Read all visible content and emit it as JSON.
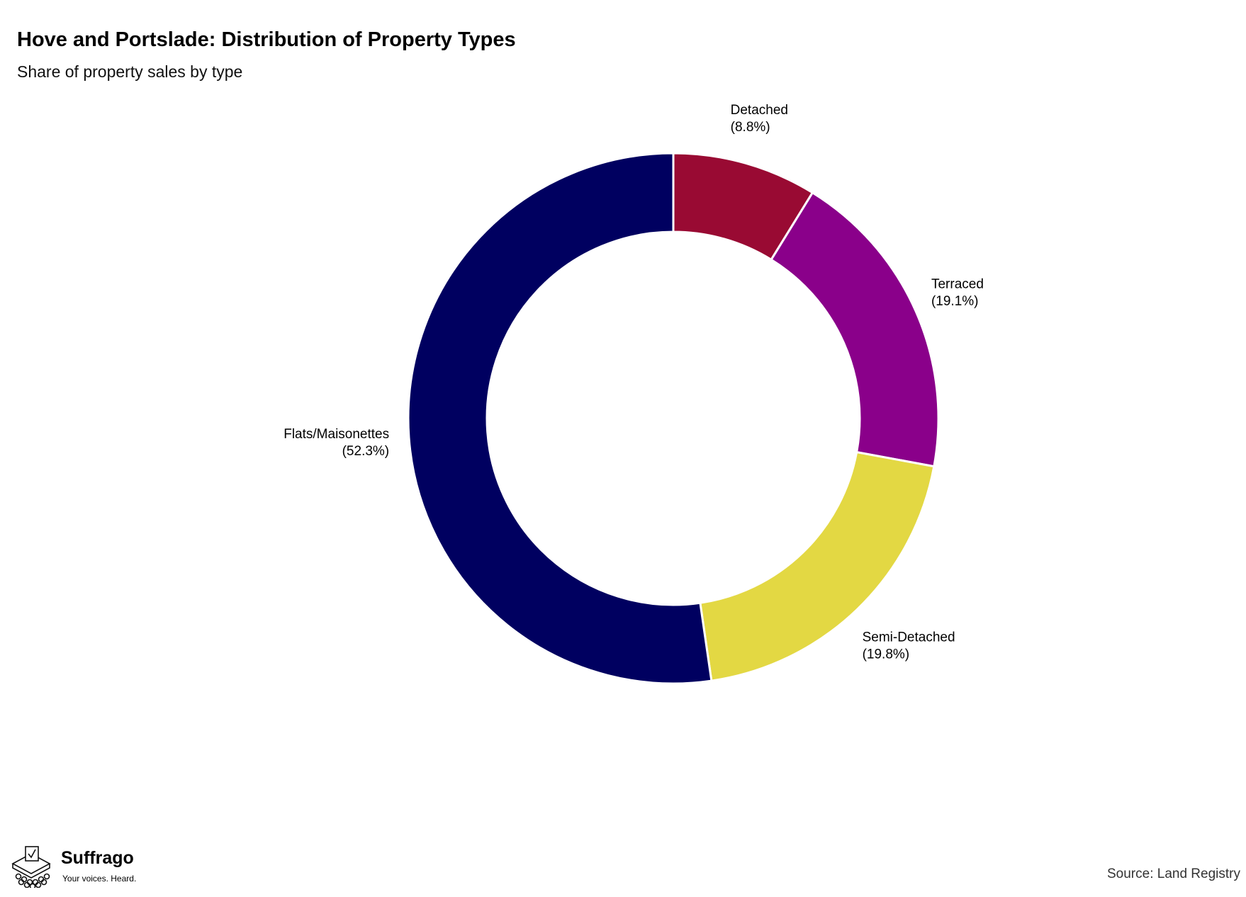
{
  "header": {
    "title": "Hove and Portslade: Distribution of Property Types",
    "subtitle": "Share of property sales by type"
  },
  "chart_data": {
    "type": "pie",
    "variant": "donut",
    "title": "Hove and Portslade: Distribution of Property Types",
    "subtitle": "Share of property sales by type",
    "slices": [
      {
        "name": "Detached",
        "value": 8.8,
        "label": "(8.8%)",
        "color": "#990a33"
      },
      {
        "name": "Terraced",
        "value": 19.1,
        "label": "(19.1%)",
        "color": "#8a008a"
      },
      {
        "name": "Semi-Detached",
        "value": 19.8,
        "label": "(19.8%)",
        "color": "#e3d843"
      },
      {
        "name": "Flats/Maisonettes",
        "value": 52.3,
        "label": "(52.3%)",
        "color": "#000060"
      }
    ],
    "start_angle": "12 o'clock",
    "direction": "clockwise",
    "legend": "none"
  },
  "footer": {
    "brand": "Suffrago",
    "tagline": "Your voices. Heard.",
    "source": "Source: Land Registry",
    "logo_icon": "ballot-box-crowd-icon"
  }
}
